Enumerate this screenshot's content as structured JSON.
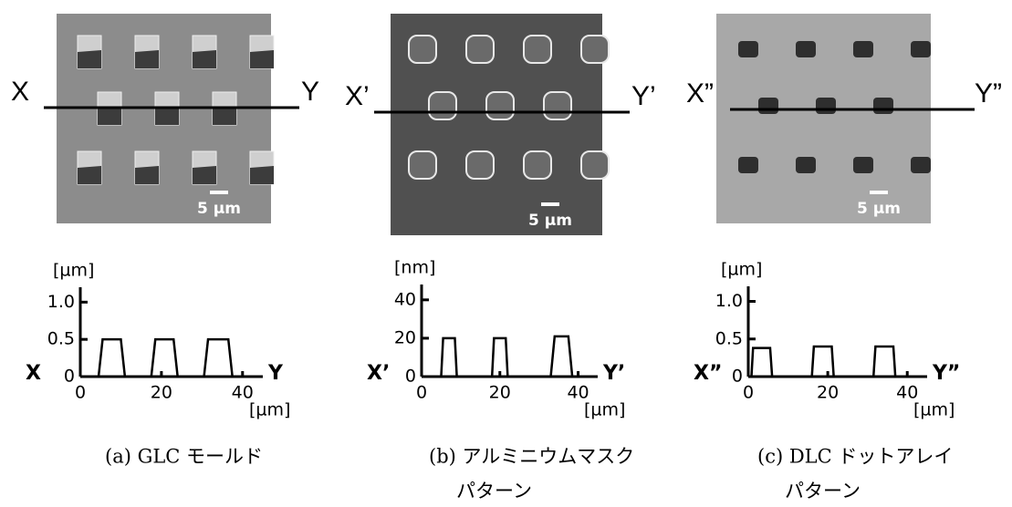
{
  "panels": [
    {
      "image": {
        "left_label": "X",
        "right_label": "Y",
        "scale_bar": "5 µm"
      },
      "caption": [
        "(a) GLC モールド"
      ]
    },
    {
      "image": {
        "left_label": "X’",
        "right_label": "Y’",
        "scale_bar": "5 µm"
      },
      "caption": [
        "(b) アルミニウムマスク",
        "パターン"
      ]
    },
    {
      "image": {
        "left_label": "X”",
        "right_label": "Y”",
        "scale_bar": "5 µm"
      },
      "caption": [
        "(c) DLC ドットアレイ",
        "パターン"
      ]
    }
  ],
  "chart_data": [
    {
      "type": "line",
      "y_unit": "[µm]",
      "x_unit": "[µm]",
      "start_label": "X",
      "end_label": "Y",
      "x": [
        0,
        4.5,
        5.5,
        10,
        11,
        17.5,
        18.5,
        23,
        24,
        30.5,
        31.5,
        36.5,
        37.5,
        45
      ],
      "values": [
        0,
        0,
        0.5,
        0.5,
        0,
        0,
        0.5,
        0.5,
        0,
        0,
        0.5,
        0.5,
        0,
        0
      ],
      "xlim": [
        0,
        45
      ],
      "ylim": [
        0,
        1.2
      ],
      "xticks": [
        0,
        20,
        40
      ],
      "yticks": [
        0,
        0.5,
        {
          "value": 1,
          "label": "1.0"
        }
      ],
      "color": "#000000"
    },
    {
      "type": "line",
      "y_unit": "[nm]",
      "x_unit": "[µm]",
      "start_label": "X’",
      "end_label": "Y’",
      "x": [
        0,
        5,
        5.5,
        8.5,
        9,
        18,
        18.5,
        21.5,
        22,
        33,
        34,
        37.5,
        38.5,
        45
      ],
      "values": [
        0,
        0,
        20,
        20,
        0,
        0,
        20,
        20,
        0,
        0,
        21,
        21,
        0,
        0
      ],
      "xlim": [
        0,
        45
      ],
      "ylim": [
        0,
        48
      ],
      "xticks": [
        0,
        20,
        40
      ],
      "yticks": [
        0,
        20,
        40
      ],
      "color": "#000000"
    },
    {
      "type": "line",
      "y_unit": "[µm]",
      "x_unit": "[µm]",
      "start_label": "X”",
      "end_label": "Y”",
      "x": [
        0,
        0.8,
        1.2,
        5.5,
        6,
        16,
        16.5,
        21,
        21.5,
        31.5,
        32,
        36.5,
        37,
        45
      ],
      "values": [
        0,
        0,
        0.38,
        0.38,
        0,
        0,
        0.4,
        0.4,
        0,
        0,
        0.4,
        0.4,
        0,
        0
      ],
      "xlim": [
        0,
        45
      ],
      "ylim": [
        0,
        1.2
      ],
      "xticks": [
        0,
        20,
        40
      ],
      "yticks": [
        0,
        0.5,
        {
          "value": 1,
          "label": "1.0"
        }
      ],
      "color": "#000000"
    }
  ]
}
